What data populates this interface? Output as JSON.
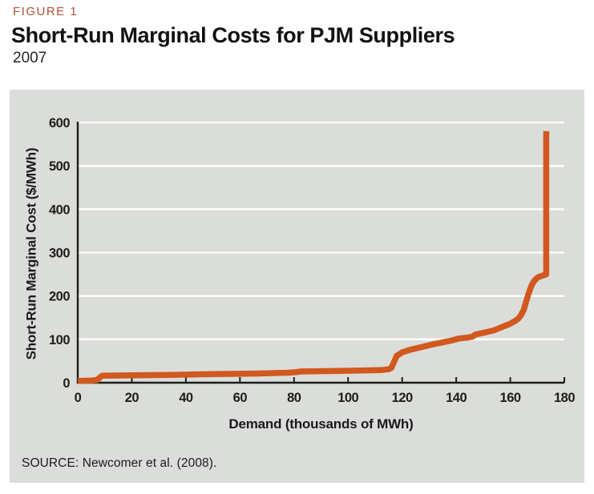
{
  "header": {
    "figure_label": "FIGURE 1",
    "title": "Short-Run Marginal Costs for PJM Suppliers",
    "subtitle": "2007"
  },
  "footer": {
    "source": "SOURCE: Newcomer et al. (2008)."
  },
  "colors": {
    "accent_curve": "#d1581e",
    "panel_background": "#dbddda",
    "gridline": "#fcfdfb",
    "axis": "#1d1d1b",
    "figure_label": "#b0503a",
    "title_text": "#121212"
  },
  "chart_data": {
    "type": "line",
    "title": "Short-Run Marginal Costs for PJM Suppliers",
    "subtitle": "2007",
    "xlabel": "Demand (thousands of MWh)",
    "ylabel": "Short-Run Marginal Cost ($/MWh)",
    "xlim": [
      0,
      180
    ],
    "ylim": [
      0,
      600
    ],
    "x_ticks": [
      0,
      20,
      40,
      60,
      80,
      100,
      120,
      140,
      160,
      180
    ],
    "y_ticks": [
      0,
      100,
      200,
      300,
      400,
      500,
      600
    ],
    "grid": "horizontal-white-on-gray",
    "legend": "none",
    "series": [
      {
        "name": "short-run-marginal-cost-supply-curve",
        "color": "#d1581e",
        "points": [
          [
            0,
            4
          ],
          [
            5,
            5
          ],
          [
            7,
            6
          ],
          [
            9,
            16
          ],
          [
            20,
            17
          ],
          [
            35,
            18
          ],
          [
            50,
            20
          ],
          [
            65,
            21
          ],
          [
            78,
            23
          ],
          [
            80,
            24
          ],
          [
            83,
            26
          ],
          [
            95,
            27
          ],
          [
            105,
            28
          ],
          [
            112,
            29
          ],
          [
            115,
            31
          ],
          [
            116,
            34
          ],
          [
            118,
            62
          ],
          [
            120,
            70
          ],
          [
            123,
            76
          ],
          [
            127,
            82
          ],
          [
            131,
            88
          ],
          [
            135,
            93
          ],
          [
            138,
            97
          ],
          [
            141,
            102
          ],
          [
            144,
            104
          ],
          [
            146,
            106
          ],
          [
            147,
            111
          ],
          [
            150,
            115
          ],
          [
            152,
            118
          ],
          [
            154,
            121
          ],
          [
            156,
            126
          ],
          [
            158,
            131
          ],
          [
            160,
            136
          ],
          [
            162,
            143
          ],
          [
            163,
            148
          ],
          [
            164,
            156
          ],
          [
            165,
            168
          ],
          [
            166,
            190
          ],
          [
            167,
            210
          ],
          [
            168,
            226
          ],
          [
            169,
            236
          ],
          [
            170,
            242
          ],
          [
            171,
            245
          ],
          [
            172,
            247
          ],
          [
            173,
            249
          ],
          [
            173.3,
            250
          ],
          [
            173.3,
            580
          ]
        ]
      }
    ]
  }
}
